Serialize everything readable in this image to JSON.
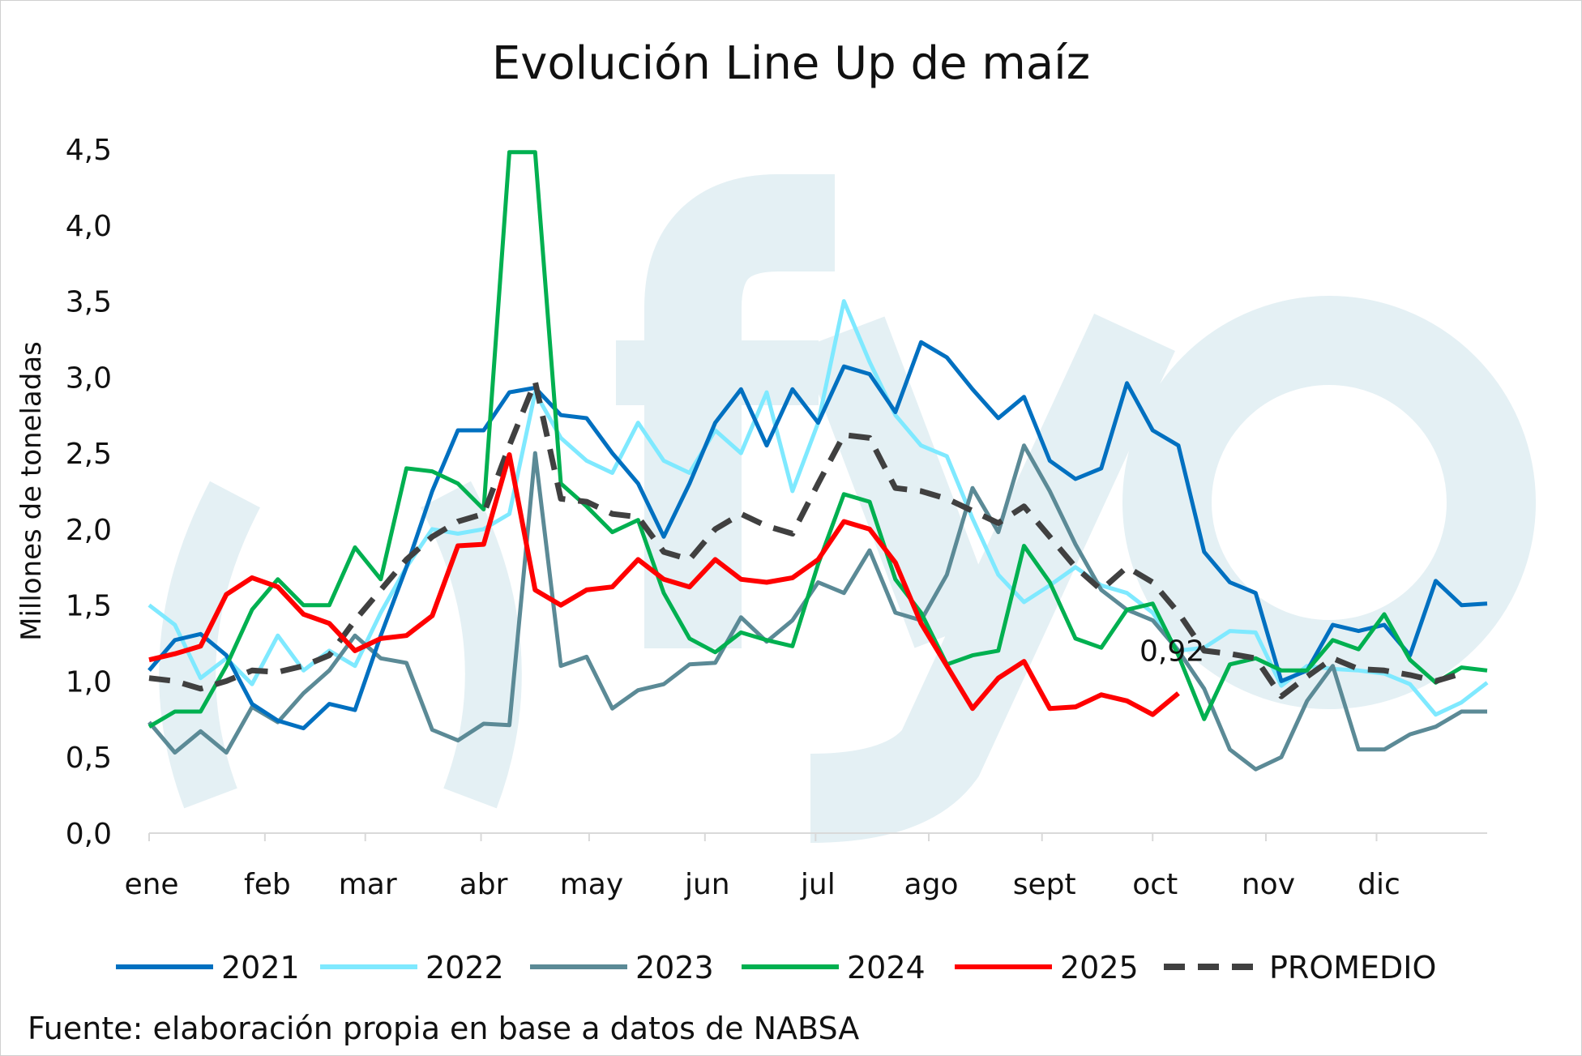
{
  "chart_data": {
    "type": "line",
    "title": "Evolución Line Up de maíz",
    "ylabel": "Millones de toneladas",
    "xlabel": "",
    "ylim": [
      0,
      4.5
    ],
    "xlim": [
      0,
      52
    ],
    "yticks": [
      0,
      0.5,
      1,
      1.5,
      2,
      2.5,
      3,
      3.5,
      4,
      4.5
    ],
    "ytick_labels": [
      "0,0",
      "0,5",
      "1,0",
      "1,5",
      "2,0",
      "2,5",
      "3,0",
      "3,5",
      "4,0",
      "4,5"
    ],
    "months": [
      {
        "label": "ene",
        "week": 0
      },
      {
        "label": "feb",
        "week": 4.5
      },
      {
        "label": "mar",
        "week": 8.4
      },
      {
        "label": "abr",
        "week": 12.9
      },
      {
        "label": "may",
        "week": 17.1
      },
      {
        "label": "jun",
        "week": 21.6
      },
      {
        "label": "jul",
        "week": 25.9
      },
      {
        "label": "ago",
        "week": 30.3
      },
      {
        "label": "sept",
        "week": 34.7
      },
      {
        "label": "oct",
        "week": 39
      },
      {
        "label": "nov",
        "week": 43.4
      },
      {
        "label": "dic",
        "week": 47.7
      }
    ],
    "grid": false,
    "legend_position": "bottom",
    "series": [
      {
        "name": "2021",
        "color": "#0070c0",
        "dashed": false,
        "values": [
          1.07,
          1.27,
          1.31,
          1.17,
          0.85,
          0.74,
          0.69,
          0.85,
          0.81,
          1.3,
          1.75,
          2.25,
          2.65,
          2.65,
          2.9,
          2.93,
          2.75,
          2.73,
          2.5,
          2.3,
          1.95,
          2.3,
          2.7,
          2.92,
          2.55,
          2.92,
          2.7,
          3.07,
          3.02,
          2.77,
          3.23,
          3.13,
          2.92,
          2.73,
          2.87,
          2.45,
          2.33,
          2.4,
          2.96,
          2.65,
          2.55,
          1.85,
          1.65,
          1.58,
          1.0,
          1.07,
          1.37,
          1.33,
          1.37,
          1.17,
          1.66,
          1.5,
          1.51
        ]
      },
      {
        "name": "2022",
        "color": "#7fe9ff",
        "dashed": false,
        "values": [
          1.5,
          1.37,
          1.02,
          1.15,
          0.98,
          1.3,
          1.07,
          1.2,
          1.1,
          1.45,
          1.75,
          2.0,
          1.97,
          2.0,
          2.1,
          2.9,
          2.6,
          2.45,
          2.37,
          2.7,
          2.45,
          2.37,
          2.65,
          2.5,
          2.9,
          2.25,
          2.7,
          3.5,
          3.1,
          2.75,
          2.55,
          2.48,
          2.07,
          1.7,
          1.52,
          1.63,
          1.75,
          1.63,
          1.58,
          1.45,
          1.2,
          1.22,
          1.33,
          1.32,
          0.97,
          1.1,
          1.08,
          1.07,
          1.05,
          0.98,
          0.78,
          0.86,
          0.99
        ]
      },
      {
        "name": "2023",
        "color": "#5b8a96",
        "dashed": false,
        "values": [
          0.73,
          0.53,
          0.67,
          0.53,
          0.83,
          0.73,
          0.92,
          1.07,
          1.3,
          1.15,
          1.12,
          0.68,
          0.61,
          0.72,
          0.71,
          2.5,
          1.1,
          1.16,
          0.82,
          0.94,
          0.98,
          1.11,
          1.12,
          1.42,
          1.26,
          1.4,
          1.65,
          1.58,
          1.86,
          1.45,
          1.4,
          1.7,
          2.27,
          1.98,
          2.55,
          2.25,
          1.9,
          1.6,
          1.47,
          1.4,
          1.2,
          0.95,
          0.55,
          0.42,
          0.5,
          0.87,
          1.1,
          0.55,
          0.55,
          0.65,
          0.7,
          0.8,
          0.8
        ]
      },
      {
        "name": "2024",
        "color": "#00b050",
        "dashed": false,
        "values": [
          0.7,
          0.8,
          0.8,
          1.1,
          1.47,
          1.67,
          1.5,
          1.5,
          1.88,
          1.67,
          2.4,
          2.38,
          2.3,
          2.13,
          4.48,
          4.48,
          2.3,
          2.15,
          1.98,
          2.06,
          1.58,
          1.28,
          1.19,
          1.32,
          1.27,
          1.23,
          1.77,
          2.23,
          2.18,
          1.67,
          1.45,
          1.11,
          1.17,
          1.2,
          1.89,
          1.65,
          1.28,
          1.22,
          1.47,
          1.51,
          1.17,
          0.75,
          1.11,
          1.15,
          1.07,
          1.07,
          1.27,
          1.21,
          1.44,
          1.14,
          0.99,
          1.09,
          1.07
        ]
      },
      {
        "name": "2025",
        "color": "#ff0000",
        "dashed": false,
        "values": [
          1.14,
          1.18,
          1.23,
          1.57,
          1.68,
          1.62,
          1.44,
          1.38,
          1.2,
          1.28,
          1.3,
          1.43,
          1.89,
          1.9,
          2.49,
          1.6,
          1.5,
          1.6,
          1.62,
          1.8,
          1.67,
          1.62,
          1.8,
          1.67,
          1.65,
          1.68,
          1.8,
          2.05,
          2.0,
          1.78,
          1.38,
          1.1,
          0.82,
          1.02,
          1.13,
          0.82,
          0.83,
          0.91,
          0.87,
          0.78,
          0.92
        ]
      },
      {
        "name": "PROMEDIO",
        "color": "#404040",
        "dashed": true,
        "values": [
          1.02,
          1.0,
          0.95,
          1.0,
          1.07,
          1.06,
          1.1,
          1.17,
          1.4,
          1.6,
          1.8,
          1.95,
          2.05,
          2.1,
          2.55,
          2.97,
          2.2,
          2.18,
          2.1,
          2.08,
          1.85,
          1.8,
          2.0,
          2.1,
          2.02,
          1.97,
          2.3,
          2.62,
          2.6,
          2.27,
          2.25,
          2.2,
          2.12,
          2.04,
          2.15,
          1.95,
          1.75,
          1.6,
          1.75,
          1.65,
          1.45,
          1.2,
          1.18,
          1.15,
          0.9,
          1.03,
          1.15,
          1.08,
          1.07,
          1.04,
          1.0,
          1.05
        ]
      }
    ],
    "annotations": [
      {
        "text": "0,92",
        "series": "2025",
        "week": 40,
        "value": 0.92
      }
    ],
    "source": "Fuente: elaboración propia en base a datos de NABSA",
    "watermark": "fyo"
  }
}
